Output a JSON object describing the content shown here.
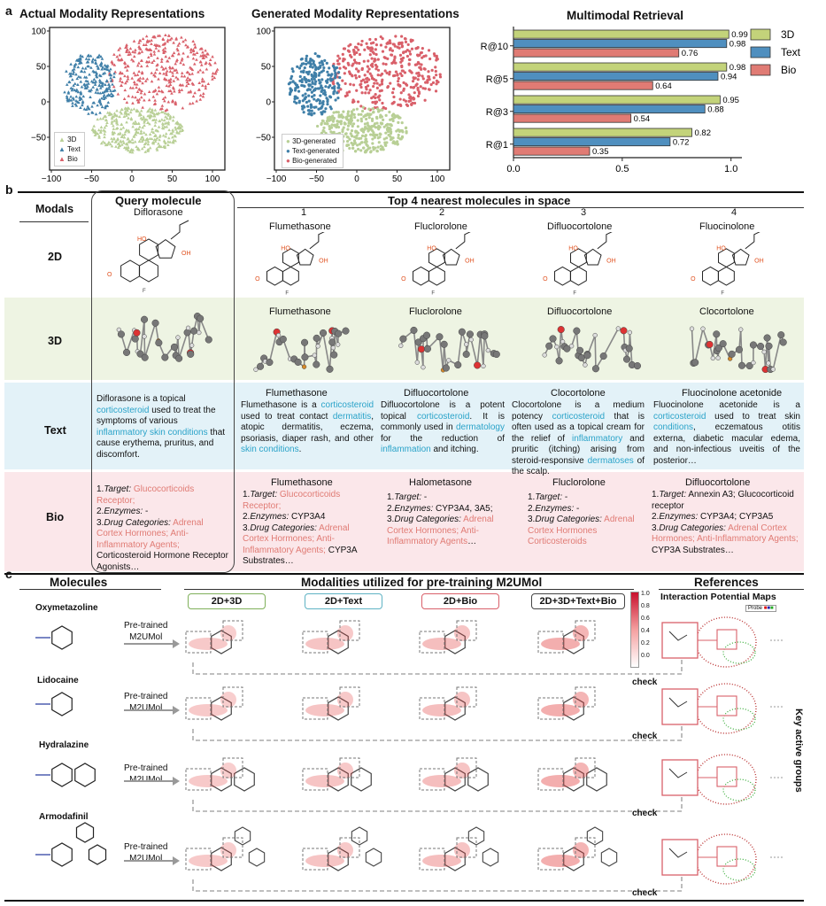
{
  "panel_a": {
    "letter": "a",
    "tsne_actual": {
      "title": "Actual Modality Representations",
      "legend": [
        "3D",
        "Text",
        "Bio"
      ],
      "yticks": [
        "100",
        "50",
        "0",
        "−50"
      ],
      "xticks": [
        "−100",
        "−50",
        "0",
        "50",
        "100"
      ]
    },
    "tsne_generated": {
      "title": "Generated Modality Representations",
      "legend": [
        "3D-generated",
        "Text-generated",
        "Bio-generated"
      ],
      "yticks": [
        "100",
        "50",
        "0",
        "−50"
      ],
      "xticks": [
        "−100",
        "−50",
        "0",
        "50",
        "100"
      ]
    },
    "colors": {
      "3d": "#b8cf95",
      "text": "#3f7fa8",
      "bio": "#d9606a"
    },
    "chart_data": {
      "type": "bar",
      "title": "Multimodal Retrieval",
      "categories": [
        "R@10",
        "R@5",
        "R@3",
        "R@1"
      ],
      "series": [
        {
          "name": "3D",
          "color": "#c3d37a",
          "values": [
            0.99,
            0.98,
            0.95,
            0.82
          ]
        },
        {
          "name": "Text",
          "color": "#4f8fbf",
          "values": [
            0.98,
            0.94,
            0.88,
            0.72
          ]
        },
        {
          "name": "Bio",
          "color": "#e07b74",
          "values": [
            0.76,
            0.64,
            0.54,
            0.35
          ]
        }
      ],
      "xlim": [
        0,
        1.05
      ],
      "xticks": [
        "0.0",
        "0.5",
        "1.0"
      ]
    }
  },
  "panel_b": {
    "letter": "b",
    "modals_header": "Modals",
    "query_header": "Query molecule",
    "query_name": "Diflorasone",
    "top_header": "Top 4 nearest molecules in space",
    "ranks": [
      "1",
      "2",
      "3",
      "4"
    ],
    "rows": {
      "d2": {
        "label": "2D",
        "names": [
          "Flumethasone",
          "Fluclorolone",
          "Difluocortolone",
          "Fluocinolone"
        ]
      },
      "d3": {
        "label": "3D",
        "names": [
          "Flumethasone",
          "Fluclorolone",
          "Difluocortolone",
          "Clocortolone"
        ]
      },
      "text": {
        "label": "Text"
      },
      "bio": {
        "label": "Bio"
      }
    },
    "text_query": [
      {
        "t": "Diflorasone is a topical "
      },
      {
        "t": "corticosteroid",
        "c": "blue"
      },
      {
        "t": " used to treat the symptoms of various "
      },
      {
        "t": "inflammatory skin conditions",
        "c": "blue"
      },
      {
        "t": " that cause erythema, pruritus, and discomfort."
      }
    ],
    "text_results": [
      {
        "name": "Flumethasone",
        "body": [
          {
            "t": "Flumethasone is a "
          },
          {
            "t": "corticosteroid",
            "c": "blue"
          },
          {
            "t": " used to treat contact "
          },
          {
            "t": "dermatitis",
            "c": "blue"
          },
          {
            "t": ", atopic dermatitis, eczema, psoriasis, diaper rash, and other "
          },
          {
            "t": "skin conditions",
            "c": "blue"
          },
          {
            "t": "."
          }
        ]
      },
      {
        "name": "Difluocortolone",
        "body": [
          {
            "t": "Difluocortolone is a potent topical "
          },
          {
            "t": "corticosteroid",
            "c": "blue"
          },
          {
            "t": ". It is commonly used in "
          },
          {
            "t": "dermatology",
            "c": "blue"
          },
          {
            "t": " for the reduction of "
          },
          {
            "t": "inflammation",
            "c": "blue"
          },
          {
            "t": " and itching."
          }
        ]
      },
      {
        "name": "Clocortolone",
        "body": [
          {
            "t": "Clocortolone is a medium potency "
          },
          {
            "t": "corticosteroid",
            "c": "blue"
          },
          {
            "t": " that is often used as a topical cream for the relief of "
          },
          {
            "t": "inflammatory",
            "c": "blue"
          },
          {
            "t": " and pruritic (itching) arising from steroid-responsive "
          },
          {
            "t": "dermatoses",
            "c": "blue"
          },
          {
            "t": " of the scalp."
          }
        ]
      },
      {
        "name": "Fluocinolone acetonide",
        "body": [
          {
            "t": "Fluocinolone acetonide is a "
          },
          {
            "t": "corticosteroid",
            "c": "blue"
          },
          {
            "t": " used to treat skin "
          },
          {
            "t": "conditions",
            "c": "blue"
          },
          {
            "t": ", eczematous otitis externa, diabetic macular edema, and non-infectious uveitis of the posterior…"
          }
        ]
      }
    ],
    "bio_query": [
      {
        "t": "1."
      },
      {
        "t": "Target:",
        "i": true
      },
      {
        "t": " Glucocorticoids Receptor;",
        "c": "red"
      },
      {
        "br": true
      },
      {
        "t": "2."
      },
      {
        "t": "Enzymes:",
        "i": true
      },
      {
        "t": " -"
      },
      {
        "br": true
      },
      {
        "t": "3."
      },
      {
        "t": "Drug Categories:",
        "i": true
      },
      {
        "t": " Adrenal Cortex Hormones; Anti-Inflammatory Agents;",
        "c": "red"
      },
      {
        "t": " Corticosteroid Hormone Receptor Agonists…"
      }
    ],
    "bio_results": [
      {
        "name": "Flumethasone",
        "body": [
          {
            "t": "1."
          },
          {
            "t": "Target:",
            "i": true
          },
          {
            "t": " Glucocorticoids Receptor;",
            "c": "red"
          },
          {
            "br": true
          },
          {
            "t": "2."
          },
          {
            "t": "Enzymes:",
            "i": true
          },
          {
            "t": " CYP3A4"
          },
          {
            "br": true
          },
          {
            "t": "3."
          },
          {
            "t": "Drug Categories:",
            "i": true
          },
          {
            "t": " Adrenal Cortex Hormones; Anti-Inflammatory Agents;",
            "c": "red"
          },
          {
            "t": " CYP3A Substrates…"
          }
        ]
      },
      {
        "name": "Halometasone",
        "body": [
          {
            "t": "1."
          },
          {
            "t": "Target:",
            "i": true
          },
          {
            "t": " -"
          },
          {
            "br": true
          },
          {
            "t": "2."
          },
          {
            "t": "Enzymes:",
            "i": true
          },
          {
            "t": " CYP3A4, 3A5;"
          },
          {
            "br": true
          },
          {
            "t": "3."
          },
          {
            "t": "Drug Categories:",
            "i": true
          },
          {
            "t": " Adrenal Cortex Hormones; Anti-Inflammatory Agents",
            "c": "red"
          },
          {
            "t": "…"
          }
        ]
      },
      {
        "name": "Fluclorolone",
        "body": [
          {
            "t": "1."
          },
          {
            "t": "Target:",
            "i": true
          },
          {
            "t": " -"
          },
          {
            "br": true
          },
          {
            "t": "2."
          },
          {
            "t": "Enzymes:",
            "i": true
          },
          {
            "t": " -"
          },
          {
            "br": true
          },
          {
            "t": "3."
          },
          {
            "t": "Drug Categories:",
            "i": true
          },
          {
            "t": " Adrenal Cortex Hormones Corticosteroids",
            "c": "red"
          }
        ]
      },
      {
        "name": "Difluocortolone",
        "body": [
          {
            "t": "1."
          },
          {
            "t": "Target:",
            "i": true
          },
          {
            "t": " Annexin A3; Glucocorticoid receptor"
          },
          {
            "br": true
          },
          {
            "t": "2."
          },
          {
            "t": "Enzymes:",
            "i": true
          },
          {
            "t": " CYP3A4; CYP3A5"
          },
          {
            "br": true
          },
          {
            "t": "3."
          },
          {
            "t": "Drug Categories:",
            "i": true
          },
          {
            "t": " Adrenal Cortex Hormones; Anti-Inflammatory Agents;",
            "c": "red"
          },
          {
            "t": " CYP3A Substrates…"
          }
        ]
      }
    ]
  },
  "panel_c": {
    "letter": "c",
    "molecules_header": "Molecules",
    "modalities_header": "Modalities utilized for pre-training M2UMol",
    "references_header": "References",
    "ipm_label": "Interaction Potential Maps",
    "probe_label": "Probe",
    "key_groups": "Key active groups",
    "check": "check",
    "pretrained": [
      "Pre-trained",
      "M2UMol"
    ],
    "modality_tags": [
      {
        "label": "2D+3D",
        "color": "#7fb05a"
      },
      {
        "label": "2D+Text",
        "color": "#5fb3c4"
      },
      {
        "label": "2D+Bio",
        "color": "#d9606a"
      },
      {
        "label": "2D+3D+Text+Bio",
        "color": "#444444"
      }
    ],
    "molecules": [
      "Oxymetazoline",
      "Lidocaine",
      "Hydralazine",
      "Armodafinil"
    ],
    "colorbar_ticks": [
      "1.0",
      "0.8",
      "0.6",
      "0.4",
      "0.2",
      "0.0"
    ]
  }
}
